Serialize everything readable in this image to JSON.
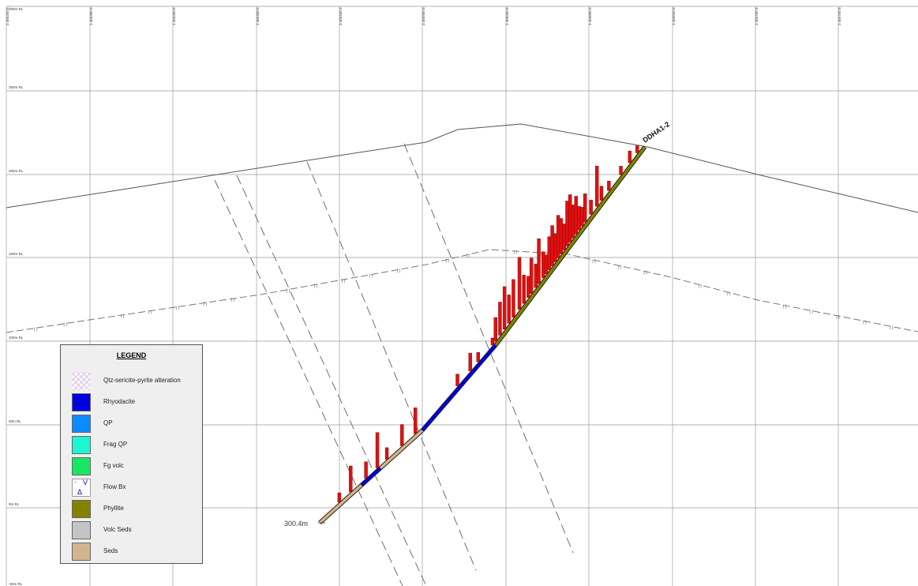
{
  "section": {
    "elevation_labels": [
      "300m RL",
      "250m RL",
      "200m RL",
      "150m RL",
      "100m RL",
      "50m RL",
      "0m RL",
      "-50m RL"
    ],
    "easting_labels": [
      "3 465250 E",
      "3 465300 E",
      "3 465350 E",
      "3 465400 E",
      "3 465450 E",
      "3 465500 E",
      "3 465550 E",
      "3 465600 E",
      "3 465650 E",
      "3 465700 E",
      "3 465750 E"
    ]
  },
  "drillhole": {
    "name": "DDHA1-2",
    "end_depth": "300.4m",
    "intervals": [
      {
        "from": 0.0,
        "to": 0.22,
        "lith": "Seds"
      },
      {
        "from": 0.22,
        "to": 0.32,
        "lith": "Rhyodacite"
      },
      {
        "from": 0.32,
        "to": 0.54,
        "lith": "Seds"
      },
      {
        "from": 0.54,
        "to": 1.0,
        "lith": "Rhyodacite"
      },
      {
        "from": 1.0,
        "to": 2.0,
        "lith": "Phyllite"
      }
    ],
    "assay_bars": [
      {
        "t": 0.12,
        "len": 0.2
      },
      {
        "t": 0.18,
        "len": 0.55
      },
      {
        "t": 0.26,
        "len": 0.35
      },
      {
        "t": 0.32,
        "len": 0.75
      },
      {
        "t": 0.37,
        "len": 0.25
      },
      {
        "t": 0.45,
        "len": 0.45
      },
      {
        "t": 0.52,
        "len": 0.55
      },
      {
        "t": 0.78,
        "len": 0.25
      },
      {
        "t": 0.86,
        "len": 0.38
      },
      {
        "t": 0.91,
        "len": 0.2
      },
      {
        "t": 1.0,
        "len": 0.15
      },
      {
        "t": 1.02,
        "len": 0.5
      },
      {
        "t": 1.05,
        "len": 0.7
      },
      {
        "t": 1.08,
        "len": 0.9
      },
      {
        "t": 1.11,
        "len": 0.6
      },
      {
        "t": 1.14,
        "len": 0.8
      },
      {
        "t": 1.18,
        "len": 1.1
      },
      {
        "t": 1.21,
        "len": 0.6
      },
      {
        "t": 1.24,
        "len": 0.45
      },
      {
        "t": 1.26,
        "len": 0.75
      },
      {
        "t": 1.29,
        "len": 0.5
      },
      {
        "t": 1.31,
        "len": 0.95
      },
      {
        "t": 1.34,
        "len": 0.55
      },
      {
        "t": 1.36,
        "len": 0.4
      },
      {
        "t": 1.38,
        "len": 0.7
      },
      {
        "t": 1.4,
        "len": 0.85
      },
      {
        "t": 1.42,
        "len": 0.6
      },
      {
        "t": 1.44,
        "len": 0.9
      },
      {
        "t": 1.46,
        "len": 0.75
      },
      {
        "t": 1.48,
        "len": 0.55
      },
      {
        "t": 1.5,
        "len": 0.95
      },
      {
        "t": 1.52,
        "len": 1.0
      },
      {
        "t": 1.54,
        "len": 0.7
      },
      {
        "t": 1.56,
        "len": 0.8
      },
      {
        "t": 1.58,
        "len": 0.5
      },
      {
        "t": 1.6,
        "len": 0.4
      },
      {
        "t": 1.62,
        "len": 0.6
      },
      {
        "t": 1.66,
        "len": 0.3
      },
      {
        "t": 1.7,
        "len": 0.85
      },
      {
        "t": 1.73,
        "len": 0.3
      },
      {
        "t": 1.78,
        "len": 0.2
      },
      {
        "t": 1.86,
        "len": 0.18
      },
      {
        "t": 1.92,
        "len": 0.25
      },
      {
        "t": 1.97,
        "len": 0.15
      }
    ]
  },
  "legend": {
    "title": "LEGEND",
    "items": [
      {
        "label": "Qtz-sericite-pyrite alteration",
        "color": "#ece4f2",
        "style": "hatch",
        "icon": "crosshatch-swatch"
      },
      {
        "label": "Rhyodacite",
        "color": "#0000e0",
        "style": "solid"
      },
      {
        "label": "QP",
        "color": "#0a8cff",
        "style": "solid"
      },
      {
        "label": "Frag QP",
        "color": "#1ef5d2",
        "style": "solid"
      },
      {
        "label": "Fg volc",
        "color": "#19e663",
        "style": "solid"
      },
      {
        "label": "Flow Bx",
        "color": "#ffffff",
        "style": "symbols",
        "icon": "flow-breccia-symbols"
      },
      {
        "label": "Phyllite",
        "color": "#828200",
        "style": "solid"
      },
      {
        "label": "Volc Seds",
        "color": "#c4c4c4",
        "style": "solid"
      },
      {
        "label": "Seds",
        "color": "#d3b48c",
        "style": "solid"
      }
    ]
  },
  "colors": {
    "assay": "#e01010",
    "grid": "#9a9a9a",
    "topography": "#555555",
    "fault": "#6e6e6e",
    "weathering": "#777777"
  }
}
